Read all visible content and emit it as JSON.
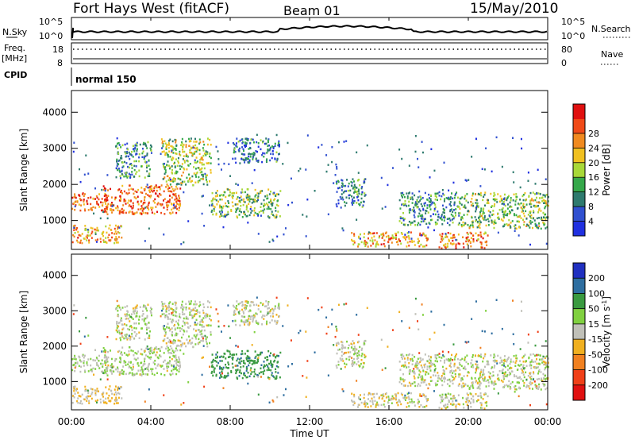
{
  "header": {
    "title": "Fort Hays West (fitACF)",
    "beam": "Beam 01",
    "date": "15/May/2010"
  },
  "noise_panel": {
    "left_label": "N.Sky",
    "right_label": "N.Search",
    "left_ticks": [
      "10^5",
      "10^0"
    ],
    "right_ticks": [
      "10^5",
      "10^0"
    ]
  },
  "freq_panel": {
    "left_label_1": "Freq.",
    "left_label_2": "[MHz]",
    "left_ticks": [
      "18",
      "8"
    ],
    "right_label": "Nave",
    "right_ticks": [
      "80",
      "0"
    ]
  },
  "cpid": {
    "label": "CPID",
    "value": "normal 150"
  },
  "range_axis": {
    "label": "Slant Range [km]",
    "ticks": [
      1000,
      2000,
      3000,
      4000
    ],
    "min": 200,
    "max": 4600
  },
  "time_axis": {
    "label": "Time UT",
    "ticks": [
      "00:00",
      "04:00",
      "08:00",
      "12:00",
      "16:00",
      "20:00",
      "00:00"
    ],
    "start_hour": 0,
    "end_hour": 24
  },
  "power_colorbar": {
    "label": "Power [dB]",
    "ticks": [
      "4",
      "8",
      "12",
      "16",
      "20",
      "24",
      "28"
    ],
    "colors": [
      "#2030e0",
      "#3050d0",
      "#2e7a6e",
      "#35a84a",
      "#a8d838",
      "#f0c020",
      "#f08a20",
      "#f04a18",
      "#e01010"
    ]
  },
  "velocity_colorbar": {
    "label": "Velocity [m s",
    "label_sup": "-1",
    "label_end": "]",
    "ticks": [
      "200",
      "100",
      "50",
      "15",
      "-15",
      "-50",
      "-100",
      "-200"
    ],
    "colors": [
      "#2030c0",
      "#2e6ea0",
      "#3a9a40",
      "#80d040",
      "#c0c0b8",
      "#f0b020",
      "#f08020",
      "#f04018",
      "#e01010"
    ]
  },
  "chart_data": {
    "type": "heatmap",
    "title": "Fort Hays West (fitACF)",
    "xlabel": "Time UT",
    "ylabel": "Slant Range [km]",
    "xlim": [
      0,
      24
    ],
    "ylim": [
      200,
      4600
    ],
    "panels": [
      "Power [dB]",
      "Velocity [m s-1]"
    ],
    "scatter_regions": [
      {
        "t": [
          0.0,
          2.5
        ],
        "r": [
          400,
          900
        ],
        "power": 22,
        "velocity": -15
      },
      {
        "t": [
          0.0,
          1.8
        ],
        "r": [
          1300,
          1800
        ],
        "power": 26,
        "velocity": 10
      },
      {
        "t": [
          1.5,
          5.5
        ],
        "r": [
          1200,
          2000
        ],
        "power": 25,
        "velocity": 10
      },
      {
        "t": [
          4.5,
          7.0
        ],
        "r": [
          2000,
          3300
        ],
        "power": 16,
        "velocity": 5
      },
      {
        "t": [
          2.2,
          4.0
        ],
        "r": [
          2200,
          3200
        ],
        "power": 10,
        "velocity": 5
      },
      {
        "t": [
          7.0,
          10.5
        ],
        "r": [
          1100,
          1900
        ],
        "power": 14,
        "velocity": 80
      },
      {
        "t": [
          8.0,
          10.5
        ],
        "r": [
          2600,
          3300
        ],
        "power": 8,
        "velocity": 5
      },
      {
        "t": [
          13.3,
          14.8
        ],
        "r": [
          1400,
          2200
        ],
        "power": 9,
        "velocity": 5
      },
      {
        "t": [
          14.0,
          18.0
        ],
        "r": [
          300,
          700
        ],
        "power": 22,
        "velocity": -5
      },
      {
        "t": [
          16.5,
          19.5
        ],
        "r": [
          900,
          1800
        ],
        "power": 10,
        "velocity": 5
      },
      {
        "t": [
          18.5,
          21.0
        ],
        "r": [
          250,
          700
        ],
        "power": 24,
        "velocity": -5
      },
      {
        "t": [
          19.5,
          24.0
        ],
        "r": [
          800,
          1800
        ],
        "power": 15,
        "velocity": 5
      }
    ]
  }
}
